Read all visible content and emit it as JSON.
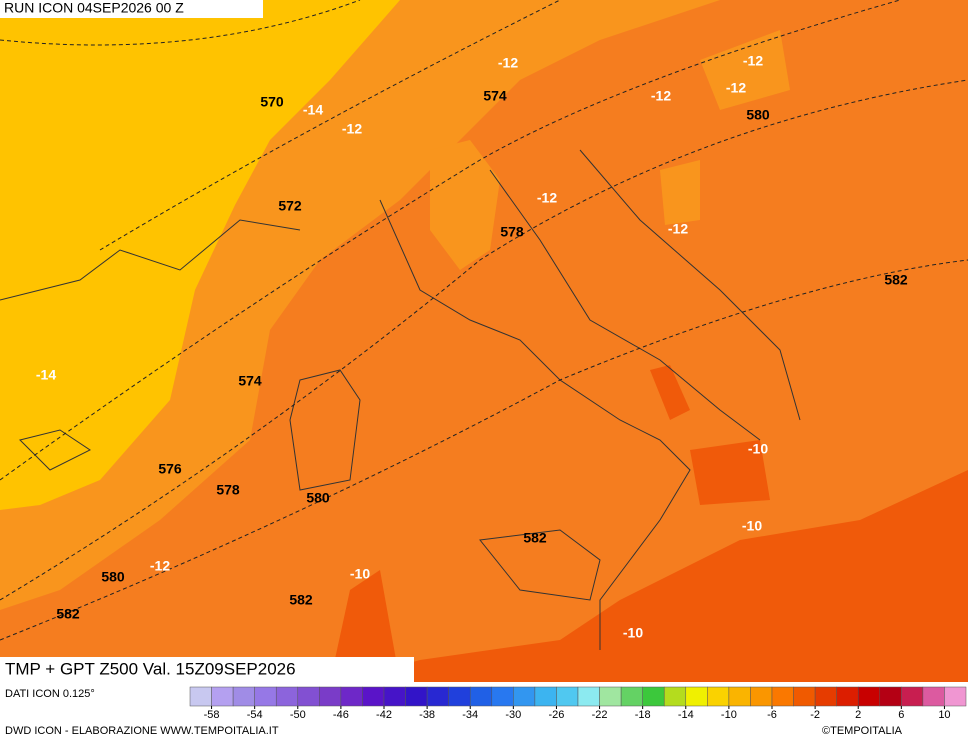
{
  "header": {
    "title": "RUN ICON 04SEP2026 00 Z"
  },
  "map": {
    "labels": [
      "570",
      "-14",
      "-12",
      "-12",
      "574",
      "-12",
      "-12",
      "-12",
      "580",
      "572",
      "-12",
      "578",
      "-12",
      "582",
      "-14",
      "574",
      "-10",
      "576",
      "578",
      "580",
      "-10",
      "582",
      "580",
      "-12",
      "-10",
      "582",
      "582",
      "-10"
    ]
  },
  "footer": {
    "caption": "TMP + GPT Z500 Val. 15Z09SEP2026",
    "data_source": "DATI ICON 0.125°",
    "credit": "DWD ICON - ELABORAZIONE WWW.TEMPOITALIA.IT",
    "brand": "©TEMPOITALIA"
  },
  "colorbar": {
    "colors": [
      "#c8c8f0",
      "#b4a0f0",
      "#a08ce6",
      "#9678e6",
      "#8c64dc",
      "#8250d2",
      "#7a3cc8",
      "#6e28c8",
      "#5a14c8",
      "#4614c8",
      "#3214c8",
      "#2828d2",
      "#2040dc",
      "#2060e6",
      "#2878f0",
      "#3296f0",
      "#3cb4f0",
      "#50c8f0",
      "#8ceaf0",
      "#a0e6a0",
      "#64d264",
      "#3cc83c",
      "#b4dc1e",
      "#f0f000",
      "#fad200",
      "#fab400",
      "#fa9600",
      "#fa7800",
      "#f05a00",
      "#e63c00",
      "#dc1e00",
      "#c80000",
      "#b40014",
      "#c81e50",
      "#dc5aa0",
      "#f096d2"
    ],
    "ticks": [
      -58,
      -54,
      -50,
      -46,
      -42,
      -38,
      -34,
      -30,
      -26,
      -22,
      -18,
      -14,
      -10,
      -6,
      -2,
      2,
      6,
      10
    ]
  }
}
